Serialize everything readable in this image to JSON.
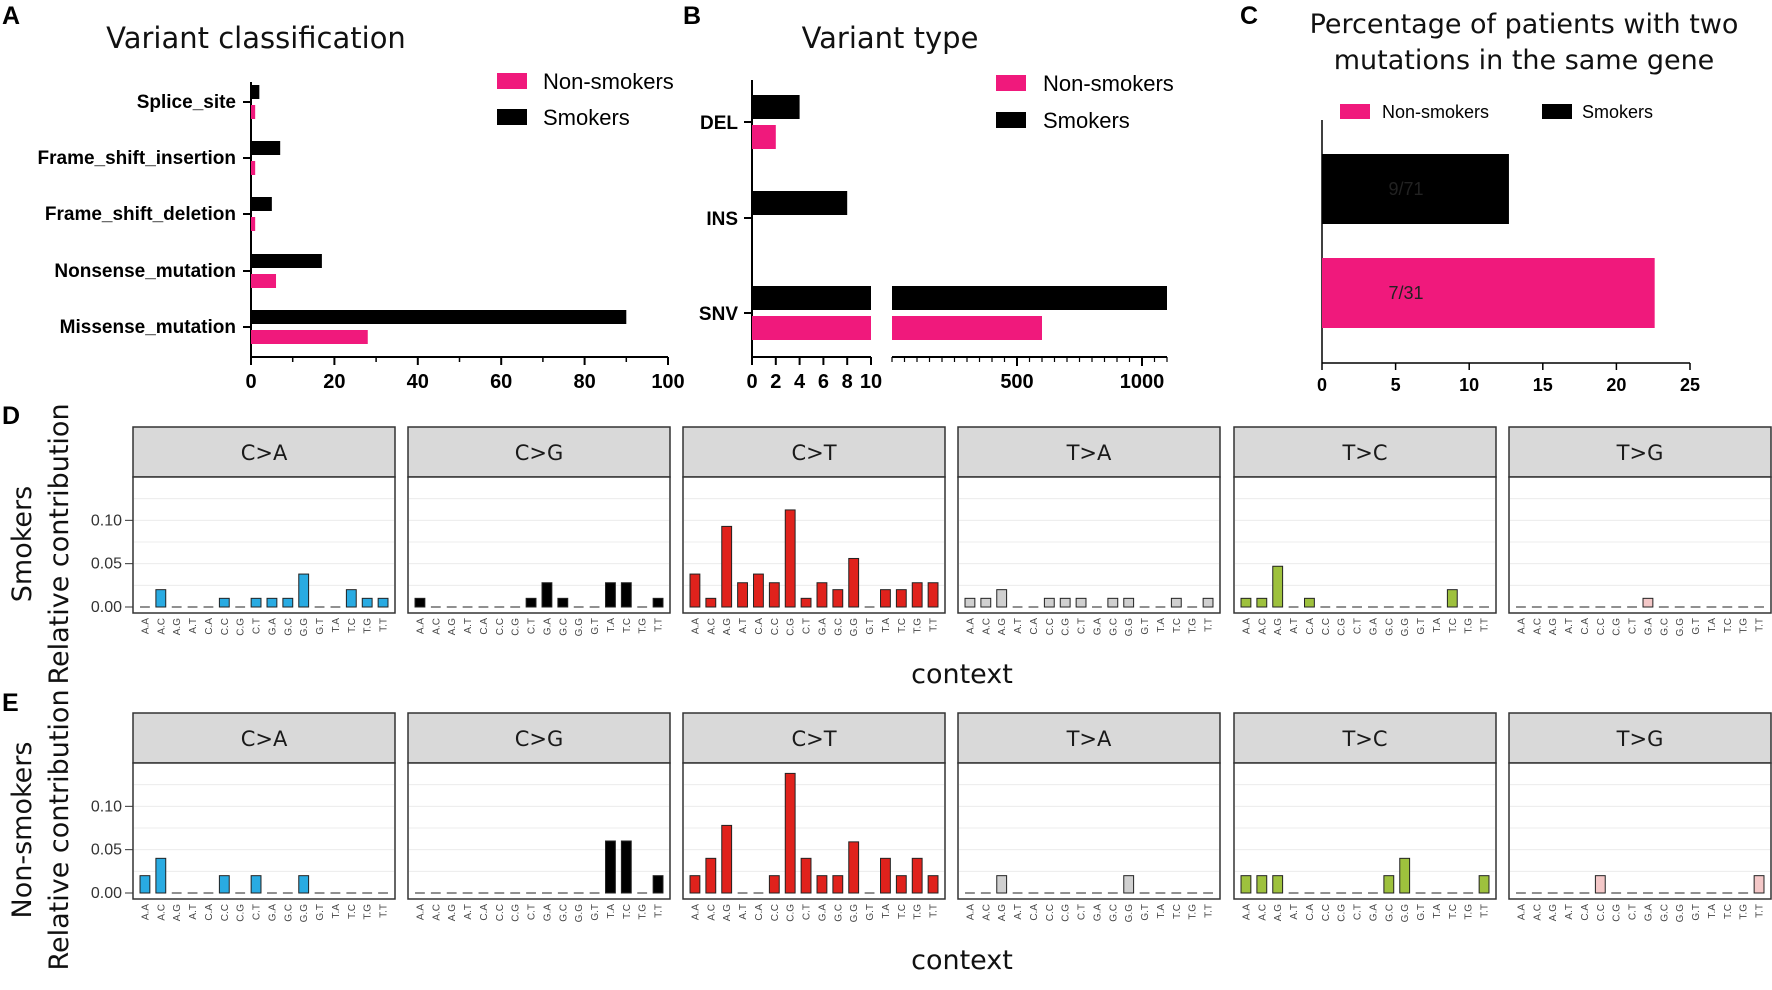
{
  "panel_labels": [
    "A",
    "B",
    "C",
    "D",
    "E"
  ],
  "chart_data": [
    {
      "id": "A",
      "type": "bar",
      "orientation": "horizontal",
      "title": "Variant classification",
      "categories": [
        "Splice_site",
        "Frame_shift_insertion",
        "Frame_shift_deletion",
        "Nonsense_mutation",
        "Missense_mutation"
      ],
      "series": [
        {
          "name": "Non-smokers",
          "color": "#f0197c",
          "values": [
            1,
            1,
            1,
            6,
            28
          ]
        },
        {
          "name": "Smokers",
          "color": "#000000",
          "values": [
            2,
            7,
            5,
            17,
            90
          ]
        }
      ],
      "xlim": [
        0,
        100
      ],
      "xticks": [
        "0",
        "20",
        "40",
        "60",
        "80",
        "100"
      ],
      "legend": "top-right"
    },
    {
      "id": "B",
      "type": "bar",
      "orientation": "horizontal",
      "title": "Variant type",
      "axis_break": "broken x-axis: 0–10 and 0–1100",
      "categories": [
        "DEL",
        "INS",
        "SNV"
      ],
      "series": [
        {
          "name": "Non-smokers",
          "color": "#f0197c",
          "values": [
            2,
            0,
            600
          ]
        },
        {
          "name": "Smokers",
          "color": "#000000",
          "values": [
            4,
            8,
            1100
          ]
        }
      ],
      "xticks_left": [
        "0",
        "2",
        "4",
        "6",
        "8",
        "10"
      ],
      "xticks_right": [
        "500",
        "1000"
      ],
      "legend": "top-right"
    },
    {
      "id": "C",
      "type": "bar",
      "orientation": "horizontal",
      "title": "Percentage of patients with two mutations in the same gene",
      "title_lines": [
        "Percentage of patients with two",
        "mutations in the same gene"
      ],
      "categories": [
        "Smokers",
        "Non-smokers"
      ],
      "values": [
        12.7,
        22.6
      ],
      "colors": [
        "#000000",
        "#f0197c"
      ],
      "bar_labels": [
        "9/71",
        "7/31"
      ],
      "legend_entries": [
        {
          "name": "Non-smokers",
          "color": "#f0197c"
        },
        {
          "name": "Smokers",
          "color": "#000000"
        }
      ],
      "xlim": [
        0,
        25
      ],
      "xticks": [
        "0",
        "5",
        "10",
        "15",
        "20",
        "25"
      ],
      "legend": "top"
    },
    {
      "id": "D",
      "type": "bar",
      "title": "",
      "row_label": "Smokers",
      "ylabel": "Relative contribution",
      "xlabel": "context",
      "ylim": [
        0,
        0.15
      ],
      "yticks": [
        "0.00",
        "0.05",
        "0.10"
      ],
      "contexts": [
        "A.A",
        "A.C",
        "A.G",
        "A.T",
        "C.A",
        "C.C",
        "C.G",
        "C.T",
        "G.A",
        "G.C",
        "G.G",
        "G.T",
        "T.A",
        "T.C",
        "T.G",
        "T.T"
      ],
      "facets": [
        {
          "label": "C>A",
          "color": "#29abe2",
          "values": [
            0.0,
            0.02,
            0.0,
            0.0,
            0.0,
            0.01,
            0.0,
            0.01,
            0.01,
            0.01,
            0.038,
            0.0,
            0.0,
            0.02,
            0.01,
            0.01
          ]
        },
        {
          "label": "C>G",
          "color": "#000000",
          "values": [
            0.01,
            0.0,
            0.0,
            0.0,
            0.0,
            0.0,
            0.0,
            0.01,
            0.028,
            0.01,
            0.0,
            0.0,
            0.028,
            0.028,
            0.0,
            0.01
          ]
        },
        {
          "label": "C>T",
          "color": "#e0221c",
          "values": [
            0.038,
            0.01,
            0.093,
            0.028,
            0.038,
            0.028,
            0.112,
            0.01,
            0.028,
            0.02,
            0.056,
            0.0,
            0.02,
            0.02,
            0.028,
            0.028
          ]
        },
        {
          "label": "T>A",
          "color": "#d0d0d0",
          "values": [
            0.01,
            0.01,
            0.02,
            0.0,
            0.0,
            0.01,
            0.01,
            0.01,
            0.0,
            0.01,
            0.01,
            0.0,
            0.0,
            0.01,
            0.0,
            0.01
          ]
        },
        {
          "label": "T>C",
          "color": "#9ec13d",
          "values": [
            0.01,
            0.01,
            0.047,
            0.0,
            0.01,
            0.0,
            0.0,
            0.0,
            0.0,
            0.0,
            0.0,
            0.0,
            0.0,
            0.02,
            0.0,
            0.0
          ]
        },
        {
          "label": "T>G",
          "color": "#f4c8c8",
          "values": [
            0.0,
            0.0,
            0.0,
            0.0,
            0.0,
            0.0,
            0.0,
            0.0,
            0.01,
            0.0,
            0.0,
            0.0,
            0.0,
            0.0,
            0.0,
            0.0
          ]
        }
      ]
    },
    {
      "id": "E",
      "type": "bar",
      "title": "",
      "row_label": "Non-smokers",
      "ylabel": "Relative contribution",
      "xlabel": "context",
      "ylim": [
        0,
        0.15
      ],
      "yticks": [
        "0.00",
        "0.05",
        "0.10"
      ],
      "contexts": [
        "A.A",
        "A.C",
        "A.G",
        "A.T",
        "C.A",
        "C.C",
        "C.G",
        "C.T",
        "G.A",
        "G.C",
        "G.G",
        "G.T",
        "T.A",
        "T.C",
        "T.G",
        "T.T"
      ],
      "facets": [
        {
          "label": "C>A",
          "color": "#29abe2",
          "values": [
            0.02,
            0.04,
            0.0,
            0.0,
            0.0,
            0.02,
            0.0,
            0.02,
            0.0,
            0.0,
            0.02,
            0.0,
            0.0,
            0.0,
            0.0,
            0.0
          ]
        },
        {
          "label": "C>G",
          "color": "#000000",
          "values": [
            0.0,
            0.0,
            0.0,
            0.0,
            0.0,
            0.0,
            0.0,
            0.0,
            0.0,
            0.0,
            0.0,
            0.0,
            0.06,
            0.06,
            0.0,
            0.02
          ]
        },
        {
          "label": "C>T",
          "color": "#e0221c",
          "values": [
            0.02,
            0.04,
            0.078,
            0.0,
            0.0,
            0.02,
            0.138,
            0.04,
            0.02,
            0.02,
            0.059,
            0.0,
            0.04,
            0.02,
            0.04,
            0.02
          ]
        },
        {
          "label": "T>A",
          "color": "#d0d0d0",
          "values": [
            0.0,
            0.0,
            0.02,
            0.0,
            0.0,
            0.0,
            0.0,
            0.0,
            0.0,
            0.0,
            0.02,
            0.0,
            0.0,
            0.0,
            0.0,
            0.0
          ]
        },
        {
          "label": "T>C",
          "color": "#9ec13d",
          "values": [
            0.02,
            0.02,
            0.02,
            0.0,
            0.0,
            0.0,
            0.0,
            0.0,
            0.0,
            0.02,
            0.04,
            0.0,
            0.0,
            0.0,
            0.0,
            0.02
          ]
        },
        {
          "label": "T>G",
          "color": "#f4c8c8",
          "values": [
            0.0,
            0.0,
            0.0,
            0.0,
            0.0,
            0.02,
            0.0,
            0.0,
            0.0,
            0.0,
            0.0,
            0.0,
            0.0,
            0.0,
            0.0,
            0.02
          ]
        }
      ]
    }
  ]
}
